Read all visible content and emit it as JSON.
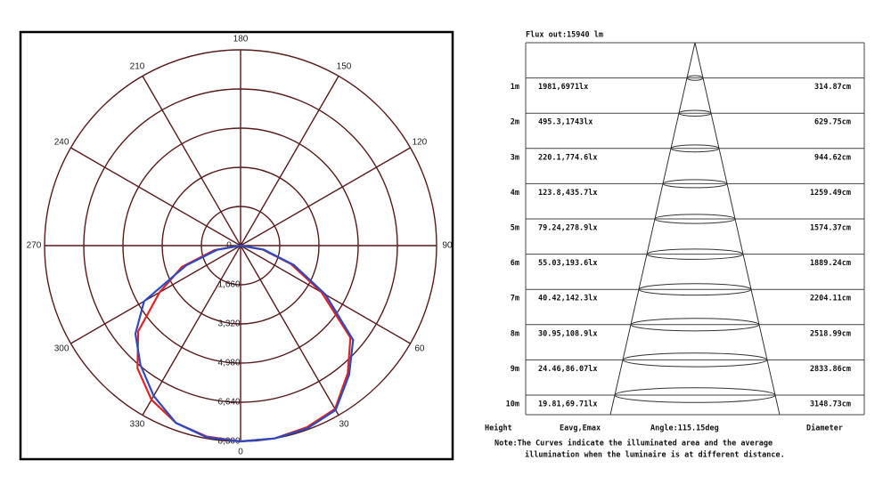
{
  "chart_data": {
    "type": "polar",
    "x": [
      270,
      280,
      290,
      300,
      310,
      320,
      330,
      340,
      350,
      0,
      10,
      20,
      30,
      40,
      50,
      60,
      70,
      80,
      90
    ],
    "series": [
      {
        "color": "#e32222",
        "values": [
          0,
          1130,
          2640,
          3960,
          5660,
          6790,
          7545,
          8000,
          8220,
          8300,
          8300,
          8200,
          8000,
          7060,
          6070,
          3960,
          2260,
          940,
          0
        ]
      },
      {
        "color": "#2a4bc4",
        "values": [
          0,
          1000,
          2450,
          4720,
          5810,
          6600,
          7360,
          8000,
          8250,
          8300,
          8300,
          8250,
          8050,
          7150,
          6220,
          4150,
          2400,
          1000,
          0
        ]
      }
    ],
    "rlim": [
      0,
      8300
    ],
    "rticks": [
      0,
      {
        "value": 1660,
        "label": "1,660"
      },
      {
        "value": 3320,
        "label": "3,320"
      },
      {
        "value": 4980,
        "label": "4,980"
      },
      {
        "value": 6640,
        "label": "6,640"
      },
      {
        "value": 8300,
        "label": "8,300"
      }
    ],
    "xticks": [
      0,
      30,
      60,
      90,
      120,
      150,
      180,
      210,
      240,
      270,
      300,
      330
    ],
    "grid": true
  },
  "cone_diagram": {
    "title": "Flux out:15940 lm",
    "rows": [
      {
        "height": "1m",
        "illuminance": "1981,6971lx",
        "diameter": "314.87cm"
      },
      {
        "height": "2m",
        "illuminance": "495.3,1743lx",
        "diameter": "629.75cm"
      },
      {
        "height": "3m",
        "illuminance": "220.1,774.6lx",
        "diameter": "944.62cm"
      },
      {
        "height": "4m",
        "illuminance": "123.8,435.7lx",
        "diameter": "1259.49cm"
      },
      {
        "height": "5m",
        "illuminance": "79.24,278.9lx",
        "diameter": "1574.37cm"
      },
      {
        "height": "6m",
        "illuminance": "55.03,193.6lx",
        "diameter": "1889.24cm"
      },
      {
        "height": "7m",
        "illuminance": "40.42,142.3lx",
        "diameter": "2204.11cm"
      },
      {
        "height": "8m",
        "illuminance": "30.95,108.9lx",
        "diameter": "2518.99cm"
      },
      {
        "height": "9m",
        "illuminance": "24.46,86.07lx",
        "diameter": "2833.86cm"
      },
      {
        "height": "10m",
        "illuminance": "19.81,69.71lx",
        "diameter": "3148.73cm"
      }
    ],
    "footer": {
      "height": "Height",
      "illuminance": "Eavg,Emax",
      "angle": "Angle:115.15deg",
      "diameter": "Diameter"
    },
    "note": [
      "Note:The Curves indicate the illuminated area and the average",
      "illumination when the luminaire is at different distance."
    ]
  }
}
